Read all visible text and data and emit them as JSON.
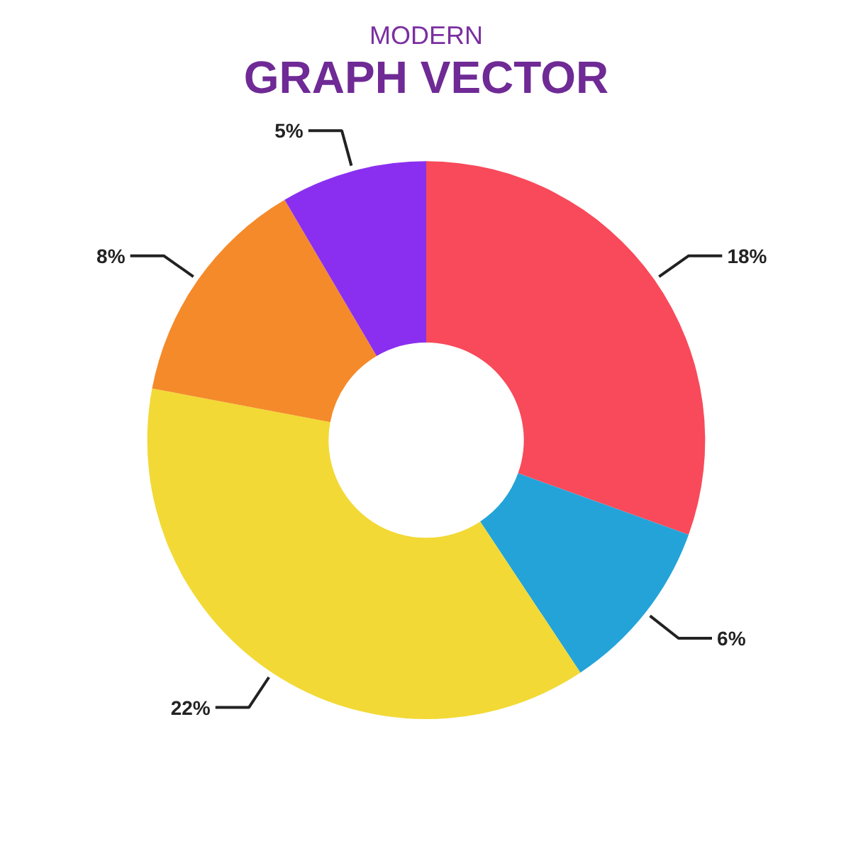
{
  "chart_data": {
    "type": "donut",
    "title": "GRAPH VECTOR",
    "subtitle": "MODERN",
    "categories": [
      null,
      null,
      null,
      null,
      null
    ],
    "values": [
      18,
      6,
      22,
      8,
      5
    ],
    "value_labels": [
      "18%",
      "6%",
      "22%",
      "8%",
      "5%"
    ],
    "colors": [
      "#f84a5a",
      "#24a3d9",
      "#f2d935",
      "#f58a2a",
      "#8a2ff0"
    ]
  }
}
